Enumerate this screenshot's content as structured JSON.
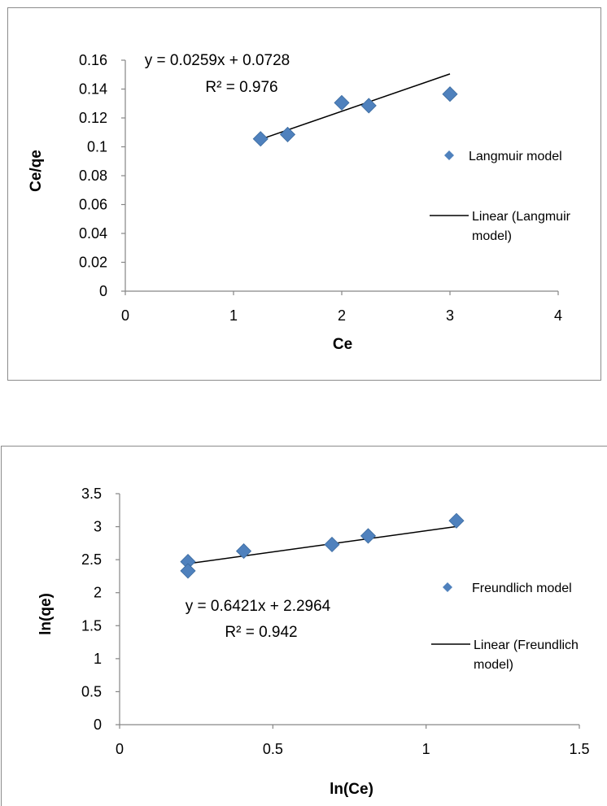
{
  "chart_data": [
    {
      "type": "scatter",
      "xlabel": "Ce",
      "ylabel": "Ce/qe",
      "xlim": [
        0,
        4
      ],
      "ylim": [
        0,
        0.16
      ],
      "x_ticks": [
        "0",
        "1",
        "2",
        "3",
        "4"
      ],
      "y_ticks": [
        "0",
        "0.02",
        "0.04",
        "0.06",
        "0.08",
        "0.1",
        "0.12",
        "0.14",
        "0.16"
      ],
      "series": [
        {
          "name": "Langmuir model",
          "points": [
            [
              1.25,
              0.1055
            ],
            [
              1.5,
              0.1085
            ],
            [
              2.0,
              0.1305
            ],
            [
              2.25,
              0.1285
            ],
            [
              3.0,
              0.1365
            ]
          ]
        }
      ],
      "trendline": {
        "name": "Linear (Langmuir model)",
        "slope": 0.0259,
        "intercept": 0.0728,
        "x_range": [
          1.25,
          3.0
        ]
      },
      "equation": "y = 0.0259x + 0.0728",
      "r_squared": "R² = 0.976",
      "legend_position": "right",
      "grid": false,
      "marker_color": "#4f81bd"
    },
    {
      "type": "scatter",
      "xlabel": "ln(Ce)",
      "ylabel": "ln(qe)",
      "xlim": [
        0,
        1.5
      ],
      "ylim": [
        0,
        3.5
      ],
      "x_ticks": [
        "0",
        "0.5",
        "1",
        "1.5"
      ],
      "y_ticks": [
        "0",
        "0.5",
        "1",
        "1.5",
        "2",
        "2.5",
        "3",
        "3.5"
      ],
      "series": [
        {
          "name": "Freundlich model",
          "points": [
            [
              0.223,
              2.47
            ],
            [
              0.223,
              2.33
            ],
            [
              0.405,
              2.63
            ],
            [
              0.693,
              2.73
            ],
            [
              0.811,
              2.86
            ],
            [
              1.099,
              3.09
            ]
          ]
        }
      ],
      "trendline": {
        "name": "Linear (Freundlich model)",
        "slope": 0.6421,
        "intercept": 2.2964,
        "x_range": [
          0.223,
          1.099
        ]
      },
      "equation": "y = 0.6421x + 2.2964",
      "r_squared": "R² = 0.942",
      "legend_position": "right",
      "grid": false,
      "marker_color": "#4f81bd"
    }
  ]
}
